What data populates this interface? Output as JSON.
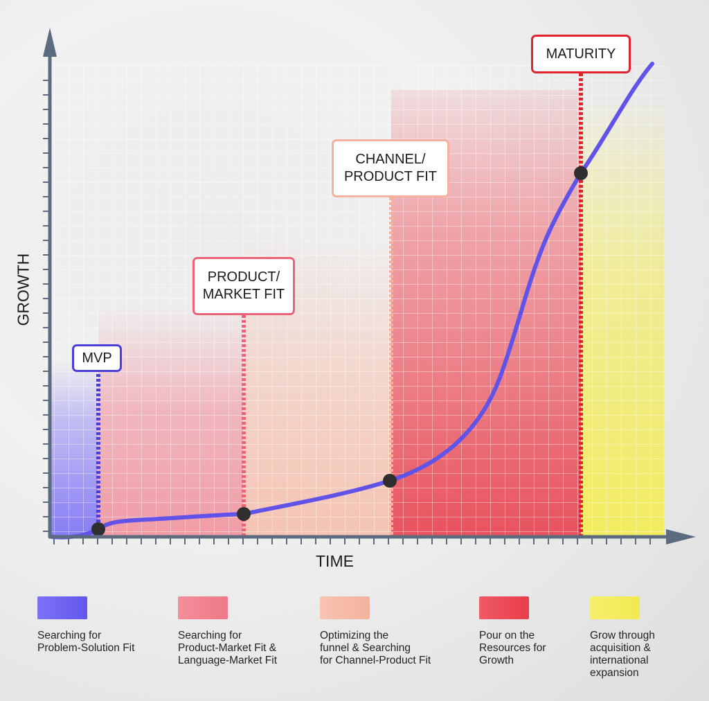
{
  "axes": {
    "x_label": "TIME",
    "y_label": "GROWTH"
  },
  "milestones": [
    {
      "key": "mvp",
      "lines": [
        "MVP"
      ],
      "color": "#4a3fd9"
    },
    {
      "key": "product-market-fit",
      "lines": [
        "PRODUCT/",
        "MARKET FIT"
      ],
      "color": "#ec6277"
    },
    {
      "key": "channel-product-fit",
      "lines": [
        "CHANNEL/",
        "PRODUCT FIT"
      ],
      "color": "#f4b19d"
    },
    {
      "key": "maturity",
      "lines": [
        "MATURITY"
      ],
      "color": "#e3222d"
    }
  ],
  "legend": [
    {
      "text": "Searching for\nProblem-Solution Fit",
      "color": "#6f64f3"
    },
    {
      "text": "Searching for\nProduct-Market Fit &\nLanguage-Market Fit",
      "color": "#f07f8d"
    },
    {
      "text": "Optimizing the\nfunnel & Searching\nfor Channel-Product Fit",
      "color": "#f6bba6"
    },
    {
      "text": "Pour on the\nResources for\nGrowth",
      "color": "#ec4651"
    },
    {
      "text": "Grow through\nacquisition &\ninternational\nexpansion",
      "color": "#f4ee5e"
    }
  ],
  "colors": {
    "axis": "#5d6b80",
    "curve": "#6153e8",
    "dot": "#2f2f2f"
  }
}
